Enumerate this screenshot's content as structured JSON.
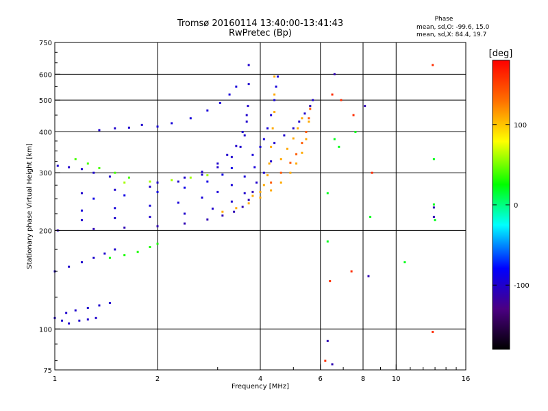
{
  "chart_data": {
    "type": "scatter",
    "title": "Tromsø 20160114 13:40:00-13:41:43",
    "subtitle": "RwPretec (Bp)",
    "xlabel": "Frequency [MHz]",
    "ylabel": "Stationary phase Virtual Height [km]",
    "x_scale": "log",
    "y_scale": "log",
    "xlim": [
      1,
      16
    ],
    "ylim": [
      75,
      750
    ],
    "x_ticks": [
      1,
      2,
      4,
      6,
      8,
      10,
      16
    ],
    "y_ticks": [
      75,
      100,
      200,
      300,
      400,
      500,
      600,
      750
    ],
    "x_gridlines": [
      2,
      4,
      6,
      8,
      10
    ],
    "y_gridlines": [
      100,
      200,
      300,
      400,
      500,
      600
    ],
    "grid": true,
    "stats": {
      "heading": "Phase",
      "o_mode": "mean, sd,O: -99.6, 15.0",
      "x_mode": "mean, sd,X:  84.4, 19.7"
    },
    "colorbar": {
      "label": "[deg]",
      "ticks": [
        100,
        0,
        -100
      ],
      "range": [
        -180,
        180
      ],
      "colormap": "rainbow"
    },
    "traces": [
      {
        "name": "",
        "phase": -100,
        "points": [
          [
            1.0,
            108
          ],
          [
            1.05,
            106
          ],
          [
            1.1,
            104
          ],
          [
            1.18,
            106
          ],
          [
            1.25,
            107
          ],
          [
            1.32,
            108
          ]
        ]
      },
      {
        "name": "",
        "phase": -100,
        "points": [
          [
            1.08,
            112
          ],
          [
            1.15,
            114
          ],
          [
            1.25,
            116
          ],
          [
            1.35,
            118
          ],
          [
            1.45,
            120
          ]
        ]
      },
      {
        "name": "",
        "phase": -100,
        "points": [
          [
            1.0,
            150
          ],
          [
            1.1,
            155
          ],
          [
            1.2,
            160
          ],
          [
            1.3,
            165
          ],
          [
            1.4,
            170
          ],
          [
            1.5,
            175
          ]
        ]
      },
      {
        "name": "",
        "phase": 30,
        "points": [
          [
            1.45,
            165
          ],
          [
            1.6,
            168
          ],
          [
            1.75,
            172
          ],
          [
            1.9,
            178
          ],
          [
            2.0,
            182
          ]
        ]
      },
      {
        "name": "",
        "phase": -110,
        "points": [
          [
            1.02,
            200
          ],
          [
            1.3,
            202
          ],
          [
            1.6,
            204
          ],
          [
            2.0,
            206
          ],
          [
            2.4,
            210
          ],
          [
            2.8,
            216
          ],
          [
            3.1,
            222
          ],
          [
            3.35,
            228
          ],
          [
            3.55,
            236
          ],
          [
            3.7,
            248
          ],
          [
            3.8,
            262
          ]
        ]
      },
      {
        "name": "",
        "phase": -100,
        "points": [
          [
            1.2,
            215
          ],
          [
            1.5,
            218
          ],
          [
            1.9,
            220
          ],
          [
            2.4,
            225
          ],
          [
            2.9,
            233
          ],
          [
            3.3,
            245
          ],
          [
            3.6,
            260
          ],
          [
            3.9,
            280
          ],
          [
            4.1,
            300
          ],
          [
            4.3,
            325
          ]
        ]
      },
      {
        "name": "",
        "phase": -95,
        "points": [
          [
            1.2,
            230
          ],
          [
            1.5,
            234
          ],
          [
            1.9,
            238
          ],
          [
            2.3,
            243
          ],
          [
            2.7,
            252
          ],
          [
            3.0,
            262
          ],
          [
            3.3,
            275
          ],
          [
            3.6,
            292
          ],
          [
            3.85,
            312
          ]
        ]
      },
      {
        "name": "",
        "phase": -90,
        "points": [
          [
            1.3,
            250
          ],
          [
            1.6,
            256
          ],
          [
            2.0,
            262
          ],
          [
            2.4,
            270
          ],
          [
            2.8,
            282
          ],
          [
            3.1,
            296
          ],
          [
            3.3,
            310
          ]
        ]
      },
      {
        "name": "",
        "phase": -100,
        "points": [
          [
            1.2,
            260
          ],
          [
            1.5,
            266
          ],
          [
            1.9,
            272
          ],
          [
            2.3,
            282
          ],
          [
            2.7,
            296
          ],
          [
            3.0,
            312
          ],
          [
            3.3,
            335
          ],
          [
            3.5,
            360
          ],
          [
            3.6,
            390
          ],
          [
            3.65,
            430
          ],
          [
            3.68,
            480
          ],
          [
            3.7,
            560
          ],
          [
            3.7,
            640
          ]
        ]
      },
      {
        "name": "",
        "phase": -100,
        "points": [
          [
            2.0,
            280
          ],
          [
            2.4,
            290
          ],
          [
            2.7,
            302
          ],
          [
            3.0,
            320
          ],
          [
            3.2,
            340
          ],
          [
            3.4,
            362
          ],
          [
            3.55,
            400
          ],
          [
            3.65,
            450
          ]
        ]
      },
      {
        "name": "",
        "phase": -95,
        "points": [
          [
            2.0,
            415
          ],
          [
            2.2,
            425
          ],
          [
            2.5,
            440
          ],
          [
            2.8,
            465
          ],
          [
            3.05,
            490
          ],
          [
            3.25,
            520
          ],
          [
            3.4,
            550
          ]
        ]
      },
      {
        "name": "",
        "phase": -100,
        "points": [
          [
            1.35,
            405
          ],
          [
            1.5,
            410
          ],
          [
            1.65,
            412
          ],
          [
            1.8,
            420
          ]
        ]
      },
      {
        "name": "",
        "phase": -100,
        "points": [
          [
            1.02,
            315
          ],
          [
            1.1,
            312
          ],
          [
            1.2,
            308
          ],
          [
            1.3,
            300
          ],
          [
            1.45,
            292
          ]
        ]
      },
      {
        "name": "",
        "phase": 40,
        "points": [
          [
            1.15,
            330
          ],
          [
            1.25,
            320
          ],
          [
            1.35,
            310
          ],
          [
            1.5,
            300
          ],
          [
            1.65,
            290
          ]
        ]
      },
      {
        "name": "",
        "phase": 60,
        "points": [
          [
            1.6,
            280
          ],
          [
            1.9,
            282
          ],
          [
            2.2,
            285
          ],
          [
            2.5,
            290
          ],
          [
            2.8,
            295
          ]
        ]
      },
      {
        "name": "",
        "phase": 110,
        "points": [
          [
            3.1,
            228
          ],
          [
            3.4,
            234
          ],
          [
            3.7,
            242
          ],
          [
            4.0,
            252
          ],
          [
            4.3,
            265
          ],
          [
            4.6,
            280
          ],
          [
            4.9,
            300
          ],
          [
            5.1,
            320
          ],
          [
            5.3,
            345
          ],
          [
            5.45,
            380
          ],
          [
            5.55,
            430
          ],
          [
            5.6,
            480
          ]
        ]
      },
      {
        "name": "",
        "phase": 110,
        "points": [
          [
            3.8,
            255
          ],
          [
            4.0,
            262
          ],
          [
            4.1,
            275
          ],
          [
            4.2,
            295
          ],
          [
            4.25,
            320
          ],
          [
            4.3,
            360
          ],
          [
            4.35,
            410
          ],
          [
            4.4,
            460
          ],
          [
            4.4,
            520
          ],
          [
            4.4,
            590
          ]
        ]
      },
      {
        "name": "",
        "phase": 140,
        "points": [
          [
            4.3,
            280
          ],
          [
            4.6,
            300
          ],
          [
            4.9,
            322
          ],
          [
            5.1,
            342
          ],
          [
            5.3,
            370
          ],
          [
            5.45,
            400
          ],
          [
            5.55,
            440
          ],
          [
            5.6,
            470
          ]
        ]
      },
      {
        "name": "",
        "phase": 110,
        "points": [
          [
            4.6,
            330
          ],
          [
            4.8,
            355
          ],
          [
            5.0,
            382
          ],
          [
            5.15,
            410
          ],
          [
            5.3,
            440
          ]
        ]
      },
      {
        "name": "",
        "phase": -100,
        "points": [
          [
            4.4,
            370
          ],
          [
            4.7,
            390
          ],
          [
            5.0,
            410
          ],
          [
            5.2,
            430
          ],
          [
            5.4,
            455
          ],
          [
            5.6,
            480
          ],
          [
            5.7,
            500
          ]
        ]
      },
      {
        "name": "",
        "phase": -95,
        "points": [
          [
            3.8,
            340
          ],
          [
            4.0,
            360
          ],
          [
            4.1,
            380
          ],
          [
            4.2,
            410
          ],
          [
            4.3,
            450
          ],
          [
            4.4,
            500
          ],
          [
            4.45,
            550
          ],
          [
            4.5,
            590
          ]
        ]
      },
      {
        "name": "",
        "phase": 160,
        "points": [
          [
            6.5,
            520
          ],
          [
            6.9,
            500
          ],
          [
            7.5,
            450
          ],
          [
            12.8,
            640
          ],
          [
            6.2,
            80
          ],
          [
            6.4,
            140
          ],
          [
            7.4,
            150
          ],
          [
            8.5,
            300
          ],
          [
            12.8,
            98
          ]
        ]
      },
      {
        "name": "",
        "phase": 20,
        "points": [
          [
            6.3,
            185
          ],
          [
            6.3,
            260
          ],
          [
            6.6,
            380
          ],
          [
            7.6,
            400
          ],
          [
            8.4,
            220
          ],
          [
            10.6,
            160
          ],
          [
            12.9,
            330
          ],
          [
            12.9,
            240
          ],
          [
            13.0,
            215
          ],
          [
            6.8,
            360
          ]
        ]
      },
      {
        "name": "",
        "phase": -110,
        "points": [
          [
            6.3,
            92
          ],
          [
            6.5,
            78
          ],
          [
            6.6,
            600
          ],
          [
            8.1,
            480
          ],
          [
            8.3,
            145
          ],
          [
            12.9,
            220
          ],
          [
            12.9,
            235
          ]
        ]
      }
    ]
  }
}
